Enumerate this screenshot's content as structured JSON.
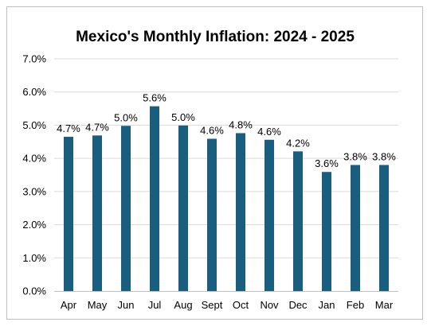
{
  "chart_data": {
    "type": "bar",
    "title": "Mexico's Monthly Inflation: 2024 - 2025",
    "categories": [
      "Apr",
      "May",
      "Jun",
      "Jul",
      "Aug",
      "Sept",
      "Oct",
      "Nov",
      "Dec",
      "Jan",
      "Feb",
      "Mar"
    ],
    "values": [
      4.65,
      4.69,
      4.98,
      5.57,
      4.99,
      4.59,
      4.76,
      4.56,
      4.21,
      3.59,
      3.8,
      3.8
    ],
    "data_labels": [
      "4.7%",
      "4.7%",
      "5.0%",
      "5.6%",
      "5.0%",
      "4.6%",
      "4.8%",
      "4.6%",
      "4.2%",
      "3.6%",
      "3.8%",
      "3.8%"
    ],
    "y_ticks": [
      0,
      1,
      2,
      3,
      4,
      5,
      6,
      7
    ],
    "y_tick_labels": [
      "0.0%",
      "1.0%",
      "2.0%",
      "3.0%",
      "4.0%",
      "5.0%",
      "6.0%",
      "7.0%"
    ],
    "ylim": [
      0,
      7
    ],
    "grid": true,
    "legend": false,
    "xlabel": "",
    "ylabel": "",
    "bar_color": "#195e7e",
    "grid_color": "#d9d9d9",
    "axis_color": "#bfbfbf"
  }
}
